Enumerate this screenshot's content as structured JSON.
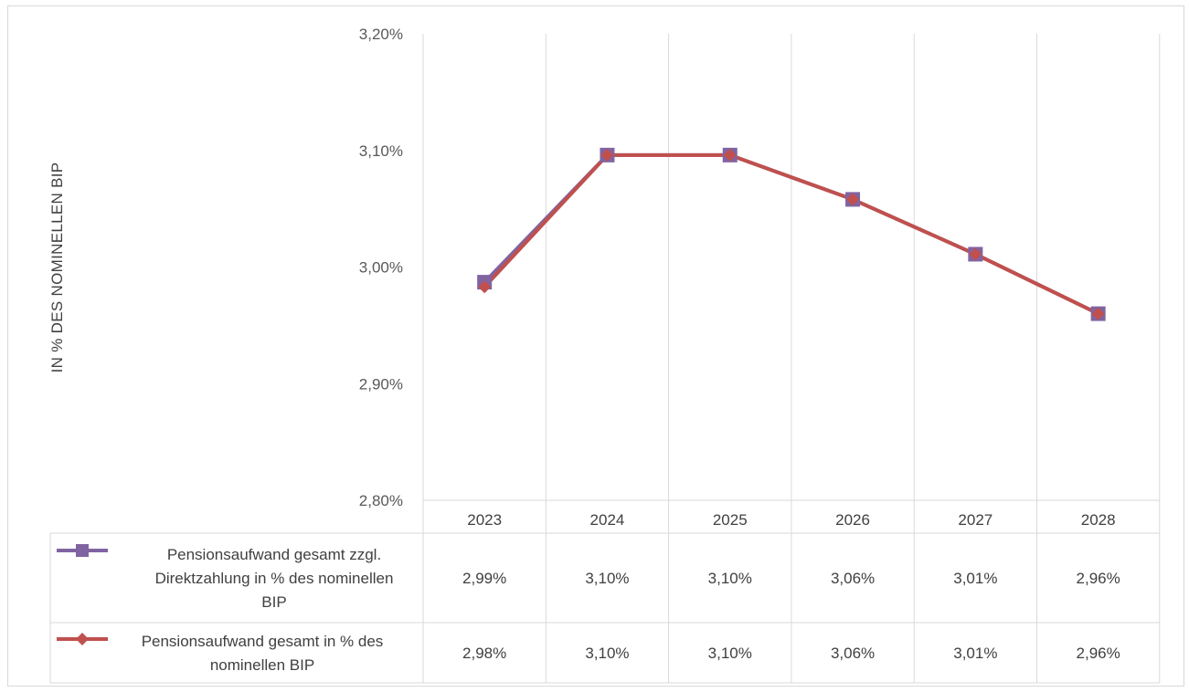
{
  "chart_data": {
    "type": "line",
    "title": "",
    "xlabel": "",
    "ylabel": "IN % DES NOMINELLEN BIP",
    "categories": [
      "2023",
      "2024",
      "2025",
      "2026",
      "2027",
      "2028"
    ],
    "ylim": [
      2.8,
      3.2
    ],
    "y_ticks": [
      2.8,
      2.9,
      3.0,
      3.1,
      3.2
    ],
    "y_tick_labels": [
      "2,80%",
      "2,90%",
      "3,00%",
      "3,10%",
      "3,20%"
    ],
    "grid": "vertical",
    "legend": "data-table",
    "series": [
      {
        "name": "Pensionsaufwand gesamt zzgl. Direktzahlung in % des nominellen BIP",
        "name_lines": [
          "Pensionsaufwand gesamt zzgl.",
          "Direktzahlung in % des nominellen",
          "BIP"
        ],
        "values": [
          2.987,
          3.096,
          3.096,
          3.058,
          3.011,
          2.96
        ],
        "labels": [
          "2,99%",
          "3,10%",
          "3,10%",
          "3,06%",
          "3,01%",
          "2,96%"
        ],
        "color": "#8064a2",
        "marker": "square"
      },
      {
        "name": "Pensionsaufwand gesamt in % des nominellen BIP",
        "name_lines": [
          "Pensionsaufwand gesamt in % des",
          "nominellen BIP"
        ],
        "values": [
          2.983,
          3.096,
          3.096,
          3.058,
          3.011,
          2.96
        ],
        "labels": [
          "2,98%",
          "3,10%",
          "3,10%",
          "3,06%",
          "3,01%",
          "2,96%"
        ],
        "color": "#c0504d",
        "marker": "diamond"
      }
    ]
  }
}
